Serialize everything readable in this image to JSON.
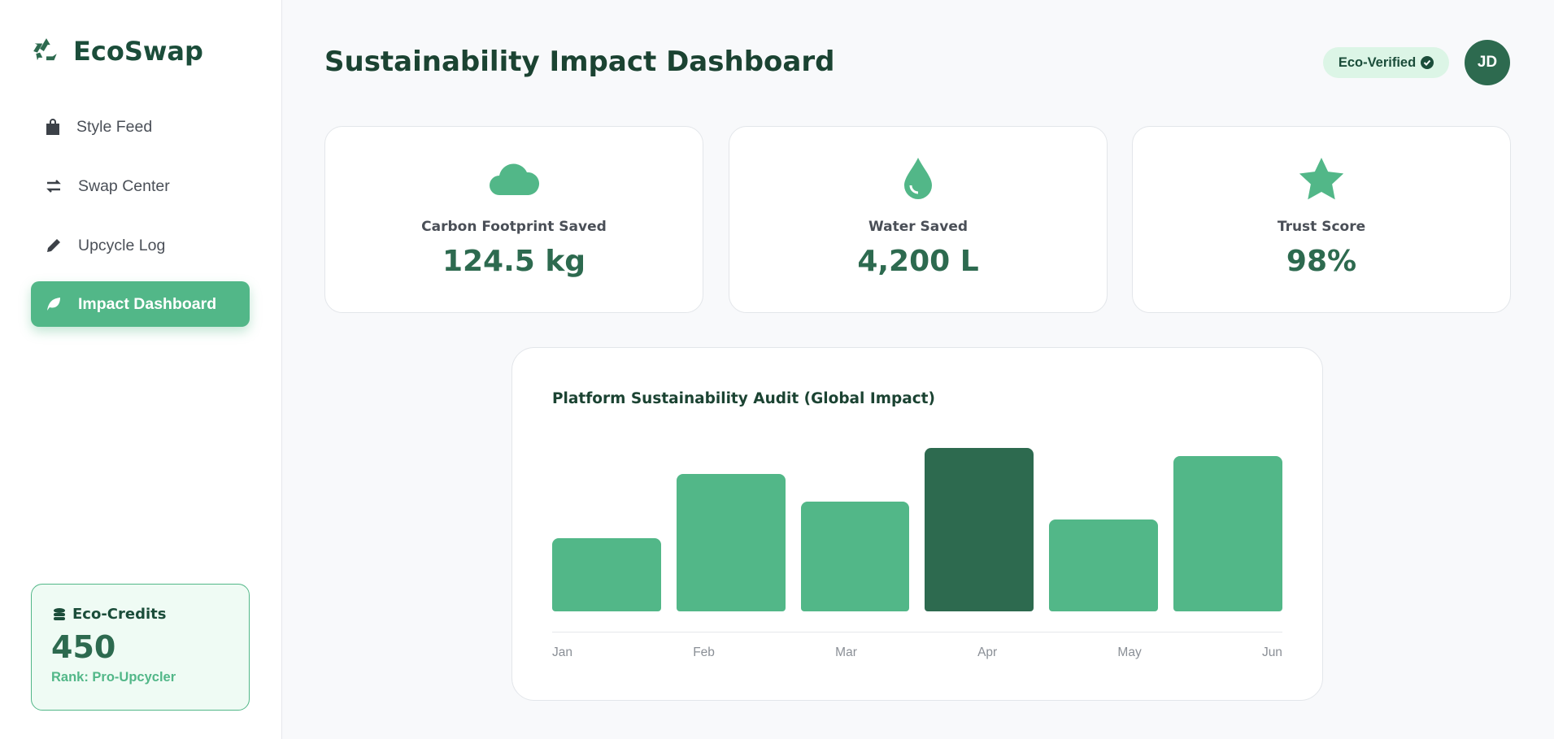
{
  "sidebar": {
    "brand": "EcoSwap",
    "nav": [
      "Style Feed",
      "Swap Center",
      "Upcycle Log",
      "Impact Dashboard"
    ],
    "credits": {
      "title": "Eco-Credits",
      "value": "450",
      "rank": "Rank: Pro-Upcycler"
    }
  },
  "header": {
    "title": "Sustainability Impact Dashboard",
    "badge": "Eco-Verified",
    "avatar": "JD"
  },
  "cards": [
    {
      "label": "Carbon Footprint Saved",
      "value": "124.5 kg"
    },
    {
      "label": "Water Saved",
      "value": "4,200 L"
    },
    {
      "label": "Trust Score",
      "value": "98%"
    }
  ],
  "chart_data": {
    "type": "bar",
    "title": "Platform Sustainability Audit (Global Impact)",
    "categories": [
      "Jan",
      "Feb",
      "Mar",
      "Apr",
      "May",
      "Jun"
    ],
    "values": [
      45,
      84,
      67,
      100,
      56,
      95
    ],
    "colors": [
      "#52b788",
      "#52b788",
      "#52b788",
      "#2d6a4f",
      "#52b788",
      "#52b788"
    ]
  }
}
